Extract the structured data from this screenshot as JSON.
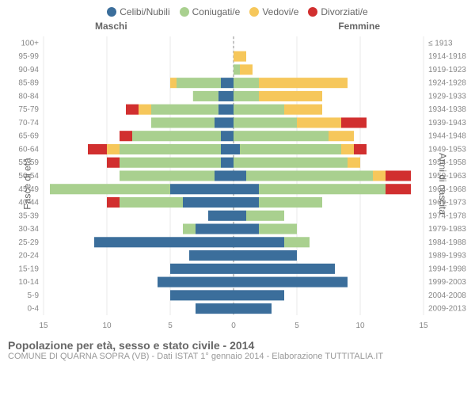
{
  "legend": [
    {
      "label": "Celibi/Nubili",
      "color": "#3b6e9b"
    },
    {
      "label": "Coniugati/e",
      "color": "#a9d08f"
    },
    {
      "label": "Vedovi/e",
      "color": "#f6c75b"
    },
    {
      "label": "Divorziati/e",
      "color": "#d12f2f"
    }
  ],
  "header": {
    "left": "Maschi",
    "right": "Femmine"
  },
  "yaxis_left_label": "Fasce di età",
  "yaxis_right_label": "Anni di nascita",
  "xmax": 15,
  "xtick_step": 5,
  "colors": {
    "single": "#3b6e9b",
    "married": "#a9d08f",
    "widowed": "#f6c75b",
    "divorced": "#d12f2f",
    "grid": "#e8e8e8",
    "center": "#888888",
    "bg": "#ffffff"
  },
  "rows": [
    {
      "age": "100+",
      "birth": "≤ 1913",
      "m": [
        0,
        0,
        0,
        0
      ],
      "f": [
        0,
        0,
        0,
        0
      ]
    },
    {
      "age": "95-99",
      "birth": "1914-1918",
      "m": [
        0,
        0,
        0,
        0
      ],
      "f": [
        0,
        0,
        1,
        0
      ]
    },
    {
      "age": "90-94",
      "birth": "1919-1923",
      "m": [
        0,
        0,
        0,
        0
      ],
      "f": [
        0,
        0.5,
        1,
        0
      ]
    },
    {
      "age": "85-89",
      "birth": "1924-1928",
      "m": [
        1,
        3.5,
        0.5,
        0
      ],
      "f": [
        0,
        2,
        7,
        0
      ]
    },
    {
      "age": "80-84",
      "birth": "1929-1933",
      "m": [
        1.2,
        2,
        0,
        0
      ],
      "f": [
        0,
        2,
        5,
        0
      ]
    },
    {
      "age": "75-79",
      "birth": "1934-1938",
      "m": [
        1.2,
        5.3,
        1,
        1
      ],
      "f": [
        0,
        4,
        3,
        0
      ]
    },
    {
      "age": "70-74",
      "birth": "1939-1943",
      "m": [
        1.5,
        5,
        0,
        0
      ],
      "f": [
        0,
        5,
        3.5,
        2
      ]
    },
    {
      "age": "65-69",
      "birth": "1944-1948",
      "m": [
        1,
        7,
        0,
        1
      ],
      "f": [
        0,
        7.5,
        2,
        0
      ]
    },
    {
      "age": "60-64",
      "birth": "1949-1953",
      "m": [
        1,
        8,
        1,
        1.5
      ],
      "f": [
        0.5,
        8,
        1,
        1
      ]
    },
    {
      "age": "55-59",
      "birth": "1954-1958",
      "m": [
        1,
        8,
        0,
        1
      ],
      "f": [
        0,
        9,
        1,
        0
      ]
    },
    {
      "age": "50-54",
      "birth": "1959-1963",
      "m": [
        1.5,
        7.5,
        0,
        0
      ],
      "f": [
        1,
        10,
        1,
        2
      ]
    },
    {
      "age": "45-49",
      "birth": "1964-1968",
      "m": [
        5,
        9.5,
        0,
        0
      ],
      "f": [
        2,
        10,
        0,
        2
      ]
    },
    {
      "age": "40-44",
      "birth": "1969-1973",
      "m": [
        4,
        5,
        0,
        1
      ],
      "f": [
        2,
        5,
        0,
        0
      ]
    },
    {
      "age": "35-39",
      "birth": "1974-1978",
      "m": [
        2,
        0,
        0,
        0
      ],
      "f": [
        1,
        3,
        0,
        0
      ]
    },
    {
      "age": "30-34",
      "birth": "1979-1983",
      "m": [
        3,
        1,
        0,
        0
      ],
      "f": [
        2,
        3,
        0,
        0
      ]
    },
    {
      "age": "25-29",
      "birth": "1984-1988",
      "m": [
        11,
        0,
        0,
        0
      ],
      "f": [
        4,
        2,
        0,
        0
      ]
    },
    {
      "age": "20-24",
      "birth": "1989-1993",
      "m": [
        3.5,
        0,
        0,
        0
      ],
      "f": [
        5,
        0,
        0,
        0
      ]
    },
    {
      "age": "15-19",
      "birth": "1994-1998",
      "m": [
        5,
        0,
        0,
        0
      ],
      "f": [
        8,
        0,
        0,
        0
      ]
    },
    {
      "age": "10-14",
      "birth": "1999-2003",
      "m": [
        6,
        0,
        0,
        0
      ],
      "f": [
        9,
        0,
        0,
        0
      ]
    },
    {
      "age": "5-9",
      "birth": "2004-2008",
      "m": [
        5,
        0,
        0,
        0
      ],
      "f": [
        4,
        0,
        0,
        0
      ]
    },
    {
      "age": "0-4",
      "birth": "2009-2013",
      "m": [
        3,
        0,
        0,
        0
      ],
      "f": [
        3,
        0,
        0,
        0
      ]
    }
  ],
  "footer": {
    "title": "Popolazione per età, sesso e stato civile - 2014",
    "sub": "COMUNE DI QUARNA SOPRA (VB) - Dati ISTAT 1° gennaio 2014 - Elaborazione TUTTITALIA.IT"
  }
}
